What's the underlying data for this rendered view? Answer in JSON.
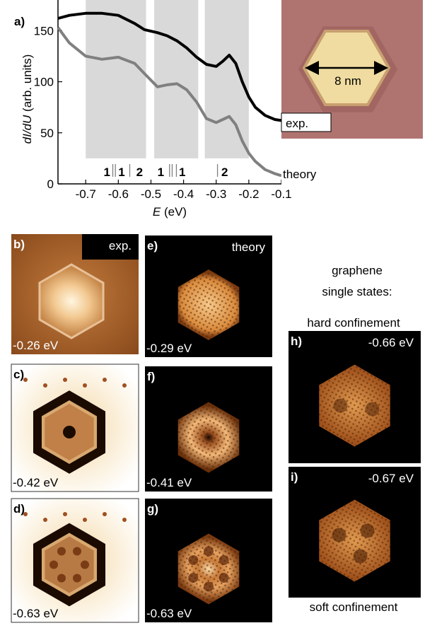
{
  "chart_data": {
    "type": "line",
    "panel_label": "a)",
    "xlabel": {
      "symbol": "E",
      "unit": "(eV)"
    },
    "ylabel": {
      "symbol": "dI/dU",
      "unit": "(arb. units)"
    },
    "xlim": [
      -0.785,
      -0.1
    ],
    "ylim": [
      0,
      180
    ],
    "xticks": [
      -0.7,
      -0.6,
      -0.5,
      -0.4,
      -0.3,
      -0.2,
      -0.1
    ],
    "yticks": [
      0,
      50,
      100,
      150
    ],
    "x": [
      -0.785,
      -0.75,
      -0.7,
      -0.65,
      -0.6,
      -0.55,
      -0.52,
      -0.48,
      -0.45,
      -0.42,
      -0.39,
      -0.36,
      -0.33,
      -0.3,
      -0.28,
      -0.26,
      -0.24,
      -0.22,
      -0.2,
      -0.18,
      -0.15,
      -0.12,
      -0.1
    ],
    "series": [
      {
        "name": "exp.",
        "color": "#000000",
        "values": [
          162,
          165,
          167,
          167,
          165,
          157,
          151,
          148,
          145,
          140,
          133,
          124,
          117,
          115,
          120,
          126,
          118,
          100,
          85,
          75,
          67,
          63,
          62
        ]
      },
      {
        "name": "theory",
        "color": "#808080",
        "values": [
          153,
          138,
          125,
          122,
          124,
          118,
          108,
          95,
          97,
          98,
          92,
          80,
          64,
          60,
          63,
          66,
          58,
          42,
          30,
          22,
          14,
          10,
          8
        ]
      }
    ],
    "bands": [
      [
        -0.7,
        -0.515
      ],
      [
        -0.49,
        -0.355
      ],
      [
        -0.335,
        -0.2
      ]
    ],
    "band_floor": 25,
    "band_color": "#d9d9d9",
    "state_lines": [
      -0.617,
      -0.609,
      -0.565,
      -0.443,
      -0.435,
      -0.422,
      -0.296
    ],
    "state_labels": [
      {
        "x": -0.635,
        "label": "1"
      },
      {
        "x": -0.59,
        "label": "1"
      },
      {
        "x": -0.535,
        "label": "2"
      },
      {
        "x": -0.47,
        "label": "1"
      },
      {
        "x": -0.404,
        "label": "1"
      },
      {
        "x": -0.274,
        "label": "2"
      }
    ],
    "inset_scale": "8 nm"
  },
  "panels": [
    {
      "label": "b)",
      "energy": "-0.26 eV",
      "title": "exp."
    },
    {
      "label": "c)",
      "energy": "-0.42 eV"
    },
    {
      "label": "d)",
      "energy": "-0.63 eV"
    },
    {
      "label": "e)",
      "energy": "-0.29 eV",
      "title": "theory"
    },
    {
      "label": "f)",
      "energy": "-0.41 eV"
    },
    {
      "label": "g)",
      "energy": "-0.63 eV"
    },
    {
      "label": "h)",
      "energy": "-0.66 eV"
    },
    {
      "label": "i)",
      "energy": "-0.67 eV"
    }
  ],
  "side_text": {
    "line1": "graphene",
    "line2": "single states:",
    "hard": "hard confinement",
    "soft": "soft confinement"
  }
}
